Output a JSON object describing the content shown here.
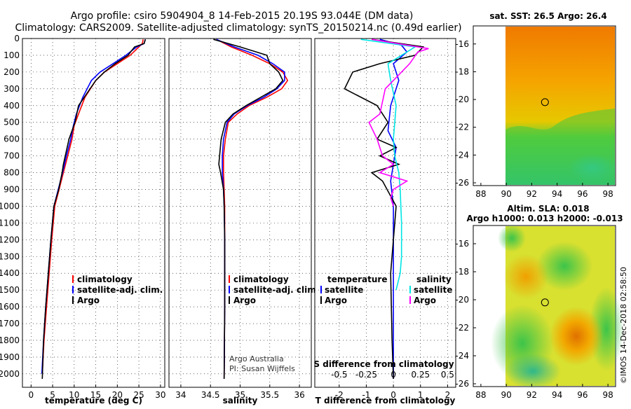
{
  "title": {
    "line1": "Argo profile: csiro 5904904_8 14-Feb-2015 20.19S 93.044E (DM data)",
    "line2": "Climatology: CARS2009. Satellite-adjusted climatology: synTS_20150214.nc (0.49d earlier)"
  },
  "colors": {
    "climatology": "#ff0000",
    "satellite": "#0000ff",
    "argo": "#000000",
    "t_satellite_diff": "#0000ff",
    "s_satellite_diff": "#00e5e5",
    "s_argo_diff": "#ff00ff"
  },
  "chart_data": [
    {
      "id": "temperature",
      "type": "line",
      "xlabel": "temperature (deg C)",
      "xlim": [
        -2,
        31
      ],
      "ylim": [
        2080,
        0
      ],
      "y_reversed": true,
      "xticks": [
        "0",
        "5",
        "10",
        "15",
        "20",
        "25",
        "30"
      ],
      "yticks": [
        "0",
        "100",
        "200",
        "300",
        "400",
        "500",
        "600",
        "700",
        "800",
        "900",
        "1000",
        "1100",
        "1200",
        "1300",
        "1400",
        "1500",
        "1600",
        "1700",
        "1800",
        "1900",
        "2000"
      ],
      "grid": "dotted",
      "legend": [
        "climatology",
        "satellite-adj. clim.",
        "Argo"
      ],
      "legend_position": "middle-right",
      "series": [
        {
          "name": "climatology",
          "color_key": "climatology",
          "x": [
            26,
            25.8,
            25,
            23,
            20,
            17,
            15,
            12.5,
            11,
            10,
            9.5,
            8.5,
            7.5,
            6.5,
            5.5,
            4.8,
            4.2,
            3.6,
            3.0,
            2.6
          ],
          "y": [
            5,
            30,
            50,
            100,
            150,
            200,
            250,
            350,
            450,
            520,
            600,
            700,
            800,
            900,
            1000,
            1200,
            1400,
            1600,
            1800,
            2000
          ]
        },
        {
          "name": "satellite-adj. clim.",
          "color_key": "satellite",
          "x": [
            26.5,
            26.2,
            24.5,
            22,
            19,
            16,
            14,
            12,
            10.5,
            9.8,
            9.2,
            8.2,
            7.3,
            6.3,
            5.3,
            4.6,
            4.0,
            3.4,
            2.9,
            2.5
          ],
          "y": [
            5,
            30,
            50,
            100,
            150,
            200,
            250,
            350,
            450,
            520,
            600,
            700,
            800,
            900,
            1000,
            1200,
            1400,
            1600,
            1800,
            2000
          ]
        },
        {
          "name": "Argo",
          "color_key": "argo",
          "x": [
            26.5,
            26.2,
            24,
            22.5,
            19.5,
            17,
            15,
            11,
            10.2,
            8.8,
            7.5,
            7.2,
            6.4,
            5.3,
            4.6,
            4.0,
            3.4,
            2.9,
            2.6
          ],
          "y": [
            5,
            30,
            50,
            100,
            150,
            200,
            250,
            400,
            500,
            600,
            750,
            800,
            900,
            1000,
            1200,
            1400,
            1600,
            1800,
            2030
          ]
        }
      ]
    },
    {
      "id": "salinity",
      "type": "line",
      "xlabel": "salinity",
      "xlim": [
        33.8,
        36.2
      ],
      "ylim": [
        2080,
        0
      ],
      "y_reversed": true,
      "xticks": [
        "34",
        "34.5",
        "35",
        "35.5",
        "36"
      ],
      "grid": "dotted",
      "legend": [
        "climatology",
        "satellite-adj. clim.",
        "Argo"
      ],
      "legend_position": "middle-right",
      "annotation": [
        "Argo Australia",
        "PI: Susan Wijffels"
      ],
      "series": [
        {
          "name": "climatology",
          "color_key": "climatology",
          "x": [
            34.6,
            34.85,
            35.2,
            35.5,
            35.72,
            35.8,
            35.7,
            35.45,
            35.15,
            34.95,
            34.8,
            34.75,
            34.72,
            34.72,
            34.73,
            34.74,
            34.74,
            34.74,
            34.74,
            34.73
          ],
          "y": [
            5,
            50,
            100,
            150,
            200,
            250,
            300,
            350,
            400,
            450,
            500,
            600,
            700,
            800,
            900,
            1000,
            1200,
            1400,
            1600,
            2030
          ]
        },
        {
          "name": "satellite-adj. clim.",
          "color_key": "satellite",
          "x": [
            34.6,
            34.9,
            35.3,
            35.55,
            35.75,
            35.75,
            35.62,
            35.4,
            35.12,
            34.9,
            34.78,
            34.72,
            34.7,
            34.7,
            34.72,
            34.73,
            34.74,
            34.74,
            34.74,
            34.73
          ],
          "y": [
            5,
            50,
            100,
            150,
            200,
            250,
            300,
            350,
            400,
            450,
            500,
            600,
            700,
            800,
            900,
            1000,
            1200,
            1400,
            1600,
            2030
          ]
        },
        {
          "name": "Argo",
          "color_key": "argo",
          "x": [
            34.55,
            35.0,
            35.45,
            35.5,
            35.65,
            35.72,
            35.6,
            35.35,
            35.1,
            34.88,
            34.75,
            34.68,
            34.64,
            34.67,
            34.72,
            34.73,
            34.74,
            34.74,
            34.74,
            34.73
          ],
          "y": [
            5,
            50,
            100,
            150,
            200,
            250,
            300,
            350,
            400,
            450,
            500,
            600,
            750,
            800,
            900,
            1000,
            1200,
            1400,
            1600,
            2030
          ]
        }
      ]
    },
    {
      "id": "differences",
      "type": "line",
      "xlabel": "T difference from climatology",
      "xlabel_top": "S difference from climatology",
      "xlim": [
        -2.9,
        2.3
      ],
      "ylim": [
        2080,
        0
      ],
      "y_reversed": true,
      "xticks": [
        "-2",
        "-1",
        "0",
        "1",
        "2"
      ],
      "s_xticks": [
        "-0.5",
        "-0.25",
        "0",
        "0.25",
        "0.5"
      ],
      "grid": "dotted",
      "legend_headers": [
        "temperature",
        "salinity"
      ],
      "legend_temperature": [
        "satellite",
        "Argo"
      ],
      "legend_salinity": [
        "satellite",
        "Argo"
      ],
      "legend_position": "middle",
      "series": [
        {
          "name": "temperature satellite",
          "color_key": "t_satellite_diff",
          "x": [
            -0.5,
            0.3,
            0.5,
            0,
            0.2,
            -0.1,
            -0.2,
            0.1,
            0,
            -0.1,
            0,
            0,
            0,
            0,
            0
          ],
          "y": [
            5,
            40,
            80,
            150,
            250,
            400,
            550,
            650,
            750,
            850,
            1000,
            1300,
            1600,
            1900,
            2030
          ]
        },
        {
          "name": "temperature Argo",
          "color_key": "argo",
          "x": [
            -0.8,
            1.1,
            0.8,
            -0.5,
            -1.5,
            -1.8,
            -0.6,
            -0.2,
            -0.6,
            0.1,
            -0.5,
            0.2,
            -0.8,
            -0.4,
            0.1,
            -0.1,
            -0.05,
            0
          ],
          "y": [
            5,
            50,
            100,
            150,
            200,
            300,
            400,
            500,
            600,
            650,
            700,
            750,
            800,
            850,
            1000,
            1400,
            1800,
            2030
          ]
        },
        {
          "name": "salinity satellite",
          "color_key": "s_satellite_diff",
          "x": [
            -1.2,
            0.8,
            0.3,
            -0.2,
            -0.1,
            0.1,
            0,
            0.05,
            0.2,
            0.25,
            0.3,
            0.3,
            0.25,
            0.1
          ],
          "y": [
            5,
            50,
            100,
            150,
            250,
            400,
            600,
            700,
            800,
            900,
            1100,
            1300,
            1400,
            1500
          ]
        },
        {
          "name": "salinity Argo",
          "color_key": "s_argo_diff",
          "x": [
            -0.8,
            1.3,
            0.9,
            0.6,
            -0.3,
            -0.5,
            -0.9,
            -0.6,
            -0.4,
            0,
            -0.5,
            0.5,
            0,
            -0.1,
            0
          ],
          "y": [
            5,
            60,
            80,
            150,
            300,
            450,
            500,
            600,
            700,
            750,
            800,
            850,
            900,
            950,
            1000
          ]
        }
      ]
    }
  ],
  "sst_map": {
    "title": "sat. SST: 26.5 Argo: 26.4",
    "xticks": [
      "88",
      "90",
      "92",
      "94",
      "96",
      "98"
    ],
    "yticks": [
      "-16",
      "-18",
      "-20",
      "-22",
      "-24",
      "-26"
    ],
    "lon_range": [
      87.4,
      98.6
    ],
    "lat_range": [
      -26.2,
      -14.7
    ],
    "argo_lon": 93.044,
    "argo_lat": -20.19
  },
  "sla_map": {
    "title_line1": "Altim. SLA: 0.018",
    "title_line2": "Argo h1000: 0.013 h2000: -0.013",
    "xticks": [
      "88",
      "90",
      "92",
      "94",
      "96",
      "98"
    ],
    "yticks": [
      "-16",
      "-18",
      "-20",
      "-22",
      "-24",
      "-26"
    ],
    "lon_range": [
      87.4,
      98.6
    ],
    "lat_range": [
      -26.2,
      -14.7
    ],
    "argo_lon": 93.044,
    "argo_lat": -20.19
  },
  "footer": {
    "stamp": "©IMOS 14-Dec-2018 02:58:50"
  }
}
